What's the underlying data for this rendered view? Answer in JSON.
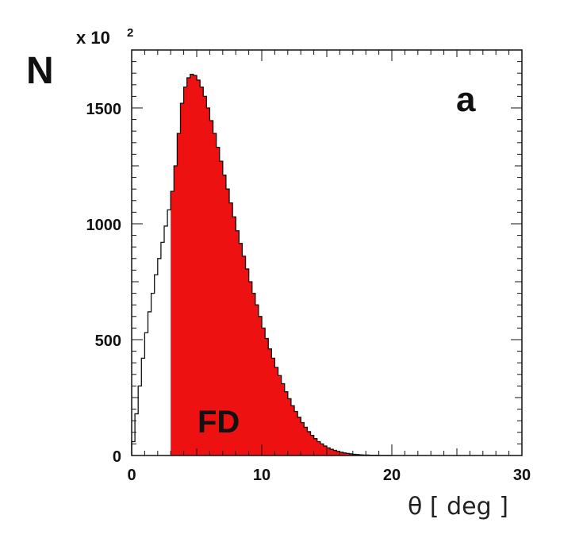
{
  "chart_data": {
    "type": "bar",
    "ylabel": "N",
    "xlabel": "θ [ deg ]",
    "y_multiplier": "x 10",
    "y_multiplier_exp": "2",
    "panel_label": "a",
    "region_label": "FD",
    "xlim": [
      0,
      30
    ],
    "ylim": [
      0,
      1750
    ],
    "x_ticks": [
      "0",
      "10",
      "20",
      "30"
    ],
    "y_ticks": [
      "0",
      "500",
      "1000",
      "1500"
    ],
    "fill_color": "#ee1111",
    "fill_from_x": 3,
    "bin_width": 0.25,
    "x": [
      0.25,
      0.5,
      0.75,
      1.0,
      1.25,
      1.5,
      1.75,
      2.0,
      2.25,
      2.5,
      2.75,
      3.0,
      3.25,
      3.5,
      3.75,
      4.0,
      4.25,
      4.5,
      4.75,
      5.0,
      5.25,
      5.5,
      5.75,
      6.0,
      6.25,
      6.5,
      6.75,
      7.0,
      7.25,
      7.5,
      7.75,
      8.0,
      8.25,
      8.5,
      8.75,
      9.0,
      9.25,
      9.5,
      9.75,
      10.0,
      10.25,
      10.5,
      10.75,
      11.0,
      11.25,
      11.5,
      11.75,
      12.0,
      12.25,
      12.5,
      12.75,
      13.0,
      13.25,
      13.5,
      13.75,
      14.0,
      14.25,
      14.5,
      14.75,
      15.0,
      15.25,
      15.5,
      15.75,
      16.0,
      16.25,
      16.5,
      16.75,
      17.0,
      17.25,
      17.5,
      17.75,
      18.0,
      18.25,
      18.5,
      18.75,
      19.0,
      19.25,
      19.5,
      19.75,
      20.0
    ],
    "values": [
      60,
      180,
      300,
      420,
      530,
      620,
      700,
      780,
      850,
      920,
      990,
      1060,
      1140,
      1250,
      1390,
      1520,
      1590,
      1630,
      1645,
      1640,
      1620,
      1590,
      1550,
      1500,
      1445,
      1390,
      1330,
      1270,
      1210,
      1150,
      1090,
      1030,
      970,
      915,
      860,
      805,
      750,
      700,
      650,
      600,
      550,
      505,
      460,
      420,
      380,
      345,
      310,
      275,
      245,
      215,
      190,
      165,
      142,
      122,
      103,
      87,
      73,
      60,
      50,
      41,
      33,
      27,
      22,
      18,
      14,
      11,
      9,
      7,
      5,
      4,
      3,
      2,
      2,
      1,
      1,
      1,
      0,
      0,
      0,
      0
    ]
  }
}
